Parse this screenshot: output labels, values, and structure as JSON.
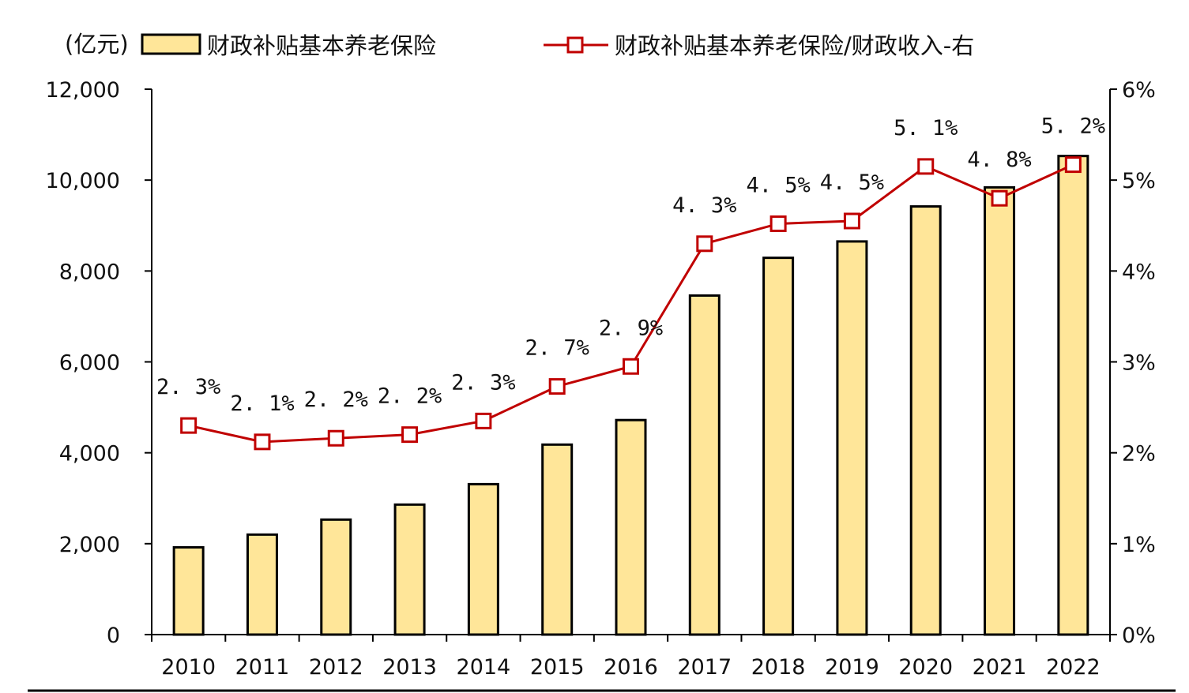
{
  "unit_label": "(亿元)",
  "colors": {
    "bar_fill": "#FFE699",
    "bar_stroke": "#000000",
    "line": "#C00000",
    "marker_fill": "#FFFFFF",
    "axis": "#000000"
  },
  "legend": {
    "bar_label": "财政补贴基本养老保险",
    "line_label": "财政补贴基本养老保险/财政收入-右"
  },
  "chart_data": {
    "type": "bar+line",
    "categories": [
      "2010",
      "2011",
      "2012",
      "2013",
      "2014",
      "2015",
      "2016",
      "2017",
      "2018",
      "2019",
      "2020",
      "2021",
      "2022"
    ],
    "series": [
      {
        "name": "财政补贴基本养老保险",
        "type": "bar",
        "axis": "left",
        "values": [
          1920,
          2200,
          2530,
          2860,
          3310,
          4180,
          4720,
          7460,
          8290,
          8650,
          9420,
          9840,
          10530
        ]
      },
      {
        "name": "财政补贴基本养老保险/财政收入-右",
        "type": "line",
        "axis": "right",
        "values": [
          2.3,
          2.12,
          2.16,
          2.2,
          2.35,
          2.73,
          2.95,
          4.3,
          4.52,
          4.55,
          5.15,
          4.8,
          5.17
        ],
        "labels": [
          "2. 3%",
          "2. 1%",
          "2. 2%",
          "2. 2%",
          "2. 3%",
          "2. 7%",
          "2. 9%",
          "4. 3%",
          "4. 5%",
          "4. 5%",
          "5. 1%",
          "4. 8%",
          "5. 2%"
        ]
      }
    ],
    "y_left": {
      "min": 0,
      "max": 12000,
      "ticks": [
        0,
        2000,
        4000,
        6000,
        8000,
        10000,
        12000
      ],
      "tick_labels": [
        "0",
        "2,000",
        "4,000",
        "6,000",
        "8,000",
        "10,000",
        "12,000"
      ]
    },
    "y_right": {
      "min": 0,
      "max": 6,
      "ticks": [
        0,
        1,
        2,
        3,
        4,
        5,
        6
      ],
      "tick_labels": [
        "0%",
        "1%",
        "2%",
        "3%",
        "4%",
        "5%",
        "6%"
      ]
    },
    "grid": false,
    "legend_position": "top"
  }
}
